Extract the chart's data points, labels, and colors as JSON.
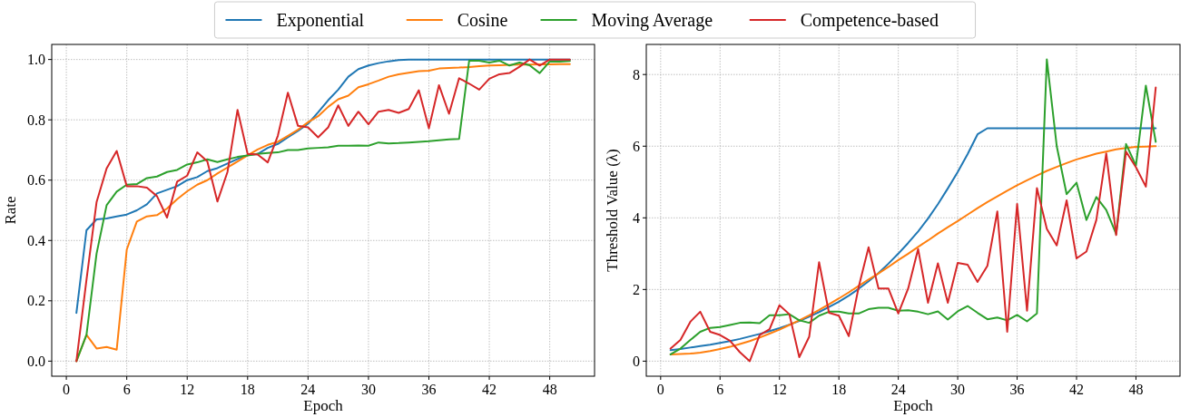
{
  "chart_data": [
    {
      "type": "line",
      "xlabel": "Epoch",
      "ylabel": "Rate",
      "legend": "top",
      "grid": true,
      "xlim": [
        -1.45,
        52.45
      ],
      "ylim": [
        -0.05,
        1.05
      ],
      "xticks": [
        0,
        6,
        12,
        18,
        24,
        30,
        36,
        42,
        48
      ],
      "yticks": [
        {
          "value": 0,
          "label": "0.0"
        },
        {
          "value": 0.2,
          "label": "0.2"
        },
        {
          "value": 0.4,
          "label": "0.4"
        },
        {
          "value": 0.6,
          "label": "0.6"
        },
        {
          "value": 0.8,
          "label": "0.8"
        },
        {
          "value": 1,
          "label": "1.0"
        }
      ],
      "x": [
        1,
        2,
        3,
        4,
        5,
        6,
        7,
        8,
        9,
        10,
        11,
        12,
        13,
        14,
        15,
        16,
        17,
        18,
        19,
        20,
        21,
        22,
        23,
        24,
        25,
        26,
        27,
        28,
        29,
        30,
        31,
        32,
        33,
        34,
        35,
        36,
        37,
        38,
        39,
        40,
        41,
        42,
        43,
        44,
        45,
        46,
        47,
        48,
        49,
        50
      ],
      "series": [
        {
          "name": "Exponential",
          "color": "#1f77b4",
          "values": [
            0.16,
            0.434,
            0.47,
            0.473,
            0.48,
            0.486,
            0.5,
            0.52,
            0.556,
            0.568,
            0.58,
            0.6,
            0.61,
            0.63,
            0.64,
            0.655,
            0.67,
            0.683,
            0.687,
            0.707,
            0.72,
            0.742,
            0.763,
            0.787,
            0.825,
            0.865,
            0.9,
            0.943,
            0.968,
            0.98,
            0.988,
            0.994,
            0.998,
            1,
            1,
            1,
            1,
            1,
            1,
            1,
            1,
            1,
            1,
            1,
            1,
            1,
            1,
            1,
            1,
            1
          ]
        },
        {
          "name": "Cosine",
          "color": "#ff7f0e",
          "values": [
            0,
            0.087,
            0.042,
            0.047,
            0.038,
            0.37,
            0.463,
            0.48,
            0.484,
            0.506,
            0.537,
            0.563,
            0.585,
            0.6,
            0.622,
            0.642,
            0.662,
            0.682,
            0.702,
            0.717,
            0.727,
            0.747,
            0.767,
            0.792,
            0.812,
            0.843,
            0.868,
            0.88,
            0.908,
            0.918,
            0.93,
            0.943,
            0.951,
            0.956,
            0.961,
            0.963,
            0.97,
            0.972,
            0.973,
            0.975,
            0.978,
            0.98,
            0.981,
            0.982,
            0.983,
            0.983,
            0.984,
            0.984,
            0.985,
            0.985
          ]
        },
        {
          "name": "Moving Average",
          "color": "#2ca02c",
          "values": [
            0,
            0.087,
            0.356,
            0.517,
            0.562,
            0.585,
            0.587,
            0.607,
            0.612,
            0.627,
            0.634,
            0.652,
            0.659,
            0.669,
            0.66,
            0.669,
            0.677,
            0.682,
            0.687,
            0.69,
            0.692,
            0.7,
            0.7,
            0.705,
            0.707,
            0.709,
            0.714,
            0.714,
            0.715,
            0.714,
            0.725,
            0.722,
            0.723,
            0.725,
            0.727,
            0.729,
            0.732,
            0.735,
            0.737,
            0.996,
            0.996,
            0.99,
            0.996,
            0.98,
            0.99,
            0.981,
            0.955,
            0.993,
            0.993,
            0.995
          ]
        },
        {
          "name": "Competence-based",
          "color": "#d62728",
          "values": [
            0,
            0.27,
            0.527,
            0.639,
            0.697,
            0.58,
            0.58,
            0.575,
            0.547,
            0.476,
            0.595,
            0.615,
            0.692,
            0.662,
            0.529,
            0.627,
            0.833,
            0.687,
            0.685,
            0.659,
            0.747,
            0.89,
            0.78,
            0.775,
            0.742,
            0.775,
            0.848,
            0.78,
            0.827,
            0.785,
            0.827,
            0.833,
            0.823,
            0.836,
            0.898,
            0.772,
            0.915,
            0.82,
            0.938,
            0.92,
            0.9,
            0.936,
            0.951,
            0.955,
            0.976,
            1,
            0.98,
            1,
            1,
            1
          ]
        }
      ]
    },
    {
      "type": "line",
      "xlabel": "Epoch",
      "ylabel": "Threshold Value (λ)",
      "grid": true,
      "xlim": [
        -1.45,
        52.45
      ],
      "ylim": [
        -0.42,
        8.84
      ],
      "xticks": [
        0,
        6,
        12,
        18,
        24,
        30,
        36,
        42,
        48
      ],
      "yticks": [
        0,
        2,
        4,
        6,
        8
      ],
      "x": [
        1,
        2,
        3,
        4,
        5,
        6,
        7,
        8,
        9,
        10,
        11,
        12,
        13,
        14,
        15,
        16,
        17,
        18,
        19,
        20,
        21,
        22,
        23,
        24,
        25,
        26,
        27,
        28,
        29,
        30,
        31,
        32,
        33,
        34,
        35,
        36,
        37,
        38,
        39,
        40,
        41,
        42,
        43,
        44,
        45,
        46,
        47,
        48,
        49,
        50
      ],
      "series": [
        {
          "color": "#1f77b4",
          "values": [
            0.31,
            0.34,
            0.38,
            0.42,
            0.46,
            0.51,
            0.56,
            0.62,
            0.69,
            0.76,
            0.84,
            0.92,
            1.02,
            1.12,
            1.24,
            1.37,
            1.51,
            1.66,
            1.83,
            2.02,
            2.23,
            2.46,
            2.72,
            3.0,
            3.3,
            3.62,
            3.98,
            4.38,
            4.82,
            5.28,
            5.78,
            6.33,
            6.5,
            6.5,
            6.5,
            6.5,
            6.5,
            6.5,
            6.5,
            6.5,
            6.5,
            6.5,
            6.5,
            6.5,
            6.5,
            6.5,
            6.5,
            6.5,
            6.5,
            6.5
          ]
        },
        {
          "color": "#ff7f0e",
          "values": [
            0.19,
            0.2,
            0.21,
            0.24,
            0.28,
            0.34,
            0.4,
            0.48,
            0.56,
            0.66,
            0.77,
            0.88,
            1.01,
            1.14,
            1.28,
            1.43,
            1.59,
            1.75,
            1.92,
            2.1,
            2.28,
            2.45,
            2.63,
            2.82,
            3.0,
            3.19,
            3.37,
            3.56,
            3.74,
            3.91,
            4.09,
            4.27,
            4.44,
            4.6,
            4.76,
            4.91,
            5.05,
            5.18,
            5.31,
            5.42,
            5.53,
            5.63,
            5.71,
            5.79,
            5.85,
            5.91,
            5.95,
            5.98,
            5.99,
            6.0
          ]
        },
        {
          "color": "#2ca02c",
          "values": [
            0.19,
            0.35,
            0.59,
            0.82,
            0.93,
            0.95,
            1.01,
            1.07,
            1.08,
            1.06,
            1.28,
            1.28,
            1.31,
            1.14,
            1.07,
            1.27,
            1.38,
            1.38,
            1.33,
            1.33,
            1.45,
            1.49,
            1.49,
            1.41,
            1.42,
            1.38,
            1.31,
            1.39,
            1.16,
            1.39,
            1.54,
            1.35,
            1.17,
            1.22,
            1.14,
            1.29,
            1.11,
            1.33,
            8.42,
            6.0,
            4.66,
            4.98,
            3.94,
            4.58,
            4.22,
            3.55,
            6.06,
            5.46,
            7.69,
            6.12
          ]
        },
        {
          "color": "#d62728",
          "values": [
            0.35,
            0.59,
            1.1,
            1.38,
            0.82,
            0.73,
            0.57,
            0.25,
            0.0,
            0.73,
            0.89,
            1.56,
            1.31,
            0.11,
            0.68,
            2.76,
            1.35,
            1.27,
            0.7,
            2.07,
            3.18,
            2.03,
            2.03,
            1.33,
            2.03,
            3.13,
            1.63,
            2.73,
            1.63,
            2.74,
            2.69,
            2.21,
            2.66,
            4.18,
            0.82,
            4.39,
            1.41,
            4.83,
            3.69,
            3.23,
            4.49,
            2.87,
            3.06,
            3.94,
            5.8,
            3.52,
            5.85,
            5.41,
            4.87,
            7.64
          ]
        }
      ]
    }
  ]
}
